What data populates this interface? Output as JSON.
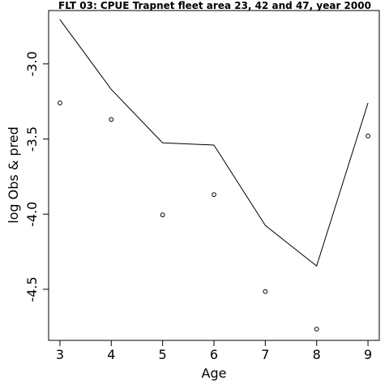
{
  "chart_data": {
    "type": "line",
    "title": "FLT 03: CPUE Trapnet fleet area 23, 42 and 47, year 2000",
    "xlabel": "Age",
    "ylabel": "log Obs & pred",
    "x": [
      3,
      4,
      5,
      6,
      7,
      8,
      9
    ],
    "xlim": [
      2.78,
      9.22
    ],
    "ylim": [
      -4.84,
      -2.645
    ],
    "x_ticks": [
      {
        "value": 3,
        "label": "3"
      },
      {
        "value": 4,
        "label": "4"
      },
      {
        "value": 5,
        "label": "5"
      },
      {
        "value": 6,
        "label": "6"
      },
      {
        "value": 7,
        "label": "7"
      },
      {
        "value": 8,
        "label": "8"
      },
      {
        "value": 9,
        "label": "9"
      }
    ],
    "y_ticks": [
      {
        "value": -3.0,
        "label": "-3.0"
      },
      {
        "value": -3.5,
        "label": "-3.5"
      },
      {
        "value": -4.0,
        "label": "-4.0"
      },
      {
        "value": -4.5,
        "label": "-4.5"
      }
    ],
    "series": [
      {
        "kind": "line",
        "values": [
          -2.705,
          -3.17,
          -3.525,
          -3.54,
          -4.075,
          -4.345,
          -3.26
        ],
        "color": "#000000"
      },
      {
        "kind": "points",
        "values": [
          -3.26,
          -3.37,
          -4.005,
          -3.87,
          -4.515,
          -4.765,
          -3.48
        ],
        "color": "#000000"
      }
    ],
    "grid": false,
    "legend": "none"
  }
}
